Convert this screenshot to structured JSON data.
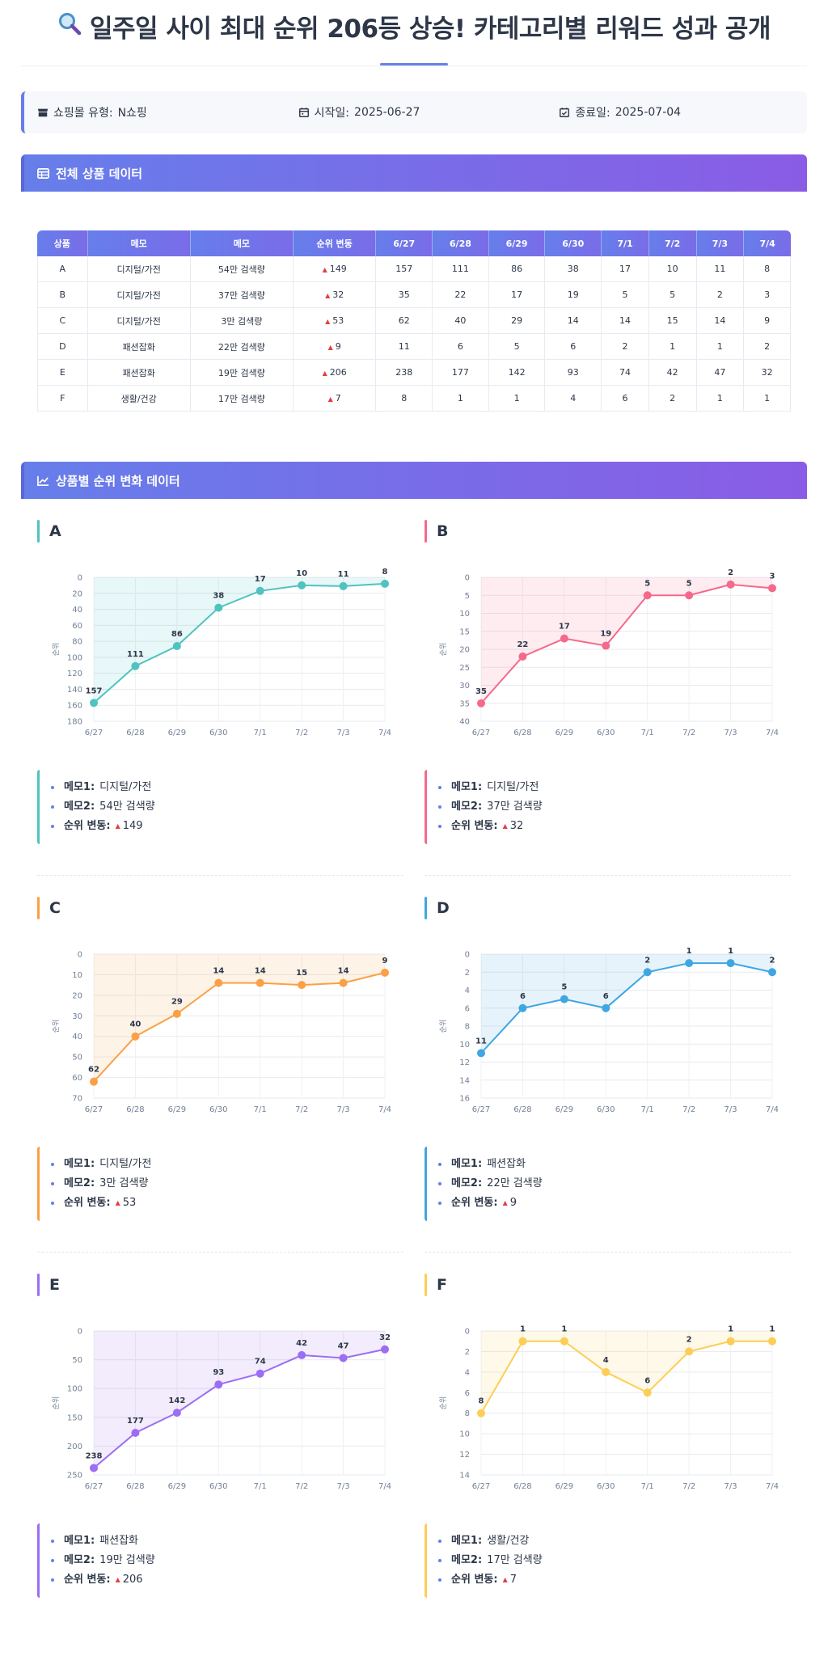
{
  "header": {
    "title": "일주일 사이 최대 순위 206등 상승! 카테고리별 리워드 성과 공개"
  },
  "info": {
    "mall_label": "쇼핑몰 유형:",
    "mall_value": "N쇼핑",
    "start_label": "시작일:",
    "start_value": "2025-06-27",
    "end_label": "종료일:",
    "end_value": "2025-07-04"
  },
  "table_section": {
    "title": "전체 상품 데이터"
  },
  "table": {
    "headers": [
      "상품",
      "메모",
      "메모",
      "순위 변동",
      "6/27",
      "6/28",
      "6/29",
      "6/30",
      "7/1",
      "7/2",
      "7/3",
      "7/4"
    ],
    "rows": [
      [
        "A",
        "디지털/가전",
        "54만 검색량",
        "149",
        "157",
        "111",
        "86",
        "38",
        "17",
        "10",
        "11",
        "8"
      ],
      [
        "B",
        "디지털/가전",
        "37만 검색량",
        "32",
        "35",
        "22",
        "17",
        "19",
        "5",
        "5",
        "2",
        "3"
      ],
      [
        "C",
        "디지털/가전",
        "3만 검색량",
        "53",
        "62",
        "40",
        "29",
        "14",
        "14",
        "15",
        "14",
        "9"
      ],
      [
        "D",
        "패션잡화",
        "22만 검색량",
        "9",
        "11",
        "6",
        "5",
        "6",
        "2",
        "1",
        "1",
        "2"
      ],
      [
        "E",
        "패션잡화",
        "19만 검색량",
        "206",
        "238",
        "177",
        "142",
        "93",
        "74",
        "42",
        "47",
        "32"
      ],
      [
        "F",
        "생활/건강",
        "17만 검색량",
        "7",
        "8",
        "1",
        "1",
        "4",
        "6",
        "2",
        "1",
        "1"
      ]
    ]
  },
  "chart_section": {
    "title": "상품별 순위 변화 데이터"
  },
  "memo_labels": {
    "memo1": "메모1:",
    "memo2": "메모2:",
    "change": "순위 변동:"
  },
  "chart_data": [
    {
      "type": "line",
      "title": "A",
      "x": [
        "6/27",
        "6/28",
        "6/29",
        "6/30",
        "7/1",
        "7/2",
        "7/3",
        "7/4"
      ],
      "series": [
        {
          "values": [
            157,
            111,
            86,
            38,
            17,
            10,
            11,
            8
          ]
        }
      ],
      "ylabel": "순위",
      "ylim": [
        0,
        180
      ],
      "yticks": [
        0,
        20,
        40,
        60,
        80,
        100,
        120,
        140,
        160,
        180
      ],
      "y_reversed": true,
      "color": "#4fc3c0",
      "memo1": "디지털/가전",
      "memo2": "54만 검색량",
      "change": "149"
    },
    {
      "type": "line",
      "title": "B",
      "x": [
        "6/27",
        "6/28",
        "6/29",
        "6/30",
        "7/1",
        "7/2",
        "7/3",
        "7/4"
      ],
      "series": [
        {
          "values": [
            35,
            22,
            17,
            19,
            5,
            5,
            2,
            3
          ]
        }
      ],
      "ylabel": "순위",
      "ylim": [
        0,
        40
      ],
      "yticks": [
        0,
        5,
        10,
        15,
        20,
        25,
        30,
        35,
        40
      ],
      "y_reversed": true,
      "color": "#f5698a",
      "memo1": "디지털/가전",
      "memo2": "37만 검색량",
      "change": "32"
    },
    {
      "type": "line",
      "title": "C",
      "x": [
        "6/27",
        "6/28",
        "6/29",
        "6/30",
        "7/1",
        "7/2",
        "7/3",
        "7/4"
      ],
      "series": [
        {
          "values": [
            62,
            40,
            29,
            14,
            14,
            15,
            14,
            9
          ]
        }
      ],
      "ylabel": "순위",
      "ylim": [
        0,
        70
      ],
      "yticks": [
        0,
        10,
        20,
        30,
        40,
        50,
        60,
        70
      ],
      "y_reversed": true,
      "color": "#fba045",
      "memo1": "디지털/가전",
      "memo2": "3만 검색량",
      "change": "53"
    },
    {
      "type": "line",
      "title": "D",
      "x": [
        "6/27",
        "6/28",
        "6/29",
        "6/30",
        "7/1",
        "7/2",
        "7/3",
        "7/4"
      ],
      "series": [
        {
          "values": [
            11,
            6,
            5,
            6,
            2,
            1,
            1,
            2
          ]
        }
      ],
      "ylabel": "순위",
      "ylim": [
        0,
        16
      ],
      "yticks": [
        0,
        2,
        4,
        6,
        8,
        10,
        12,
        14,
        16
      ],
      "y_reversed": true,
      "color": "#3fa6e2",
      "memo1": "패션잡화",
      "memo2": "22만 검색량",
      "change": "9"
    },
    {
      "type": "line",
      "title": "E",
      "x": [
        "6/27",
        "6/28",
        "6/29",
        "6/30",
        "7/1",
        "7/2",
        "7/3",
        "7/4"
      ],
      "series": [
        {
          "values": [
            238,
            177,
            142,
            93,
            74,
            42,
            47,
            32
          ]
        }
      ],
      "ylabel": "순위",
      "ylim": [
        0,
        250
      ],
      "yticks": [
        0,
        50,
        100,
        150,
        200,
        250
      ],
      "y_reversed": true,
      "color": "#9b6ef3",
      "memo1": "패션잡화",
      "memo2": "19만 검색량",
      "change": "206"
    },
    {
      "type": "line",
      "title": "F",
      "x": [
        "6/27",
        "6/28",
        "6/29",
        "6/30",
        "7/1",
        "7/2",
        "7/3",
        "7/4"
      ],
      "series": [
        {
          "values": [
            8,
            1,
            1,
            4,
            6,
            2,
            1,
            1
          ]
        }
      ],
      "ylabel": "순위",
      "ylim": [
        0,
        14
      ],
      "yticks": [
        0,
        2,
        4,
        6,
        8,
        10,
        12,
        14
      ],
      "y_reversed": true,
      "color": "#fcce55",
      "memo1": "생활/건강",
      "memo2": "17만 검색량",
      "change": "7"
    }
  ]
}
